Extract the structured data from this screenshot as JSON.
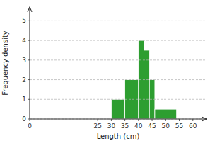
{
  "chart_data": {
    "type": "histogram",
    "bins": [
      30,
      35,
      40,
      42,
      44,
      46,
      54
    ],
    "values": [
      1,
      2,
      4,
      3.5,
      2,
      0.5
    ],
    "color": "#2d9e30",
    "xlabel": "Length (cm)",
    "ylabel": "Frequency density",
    "xlim": [
      0,
      65
    ],
    "ylim": [
      0,
      5.7
    ],
    "xticks": [
      0,
      25,
      30,
      35,
      40,
      45,
      50,
      55,
      60
    ],
    "yticks": [
      0,
      1,
      2,
      3,
      4,
      5
    ],
    "grid": true
  }
}
